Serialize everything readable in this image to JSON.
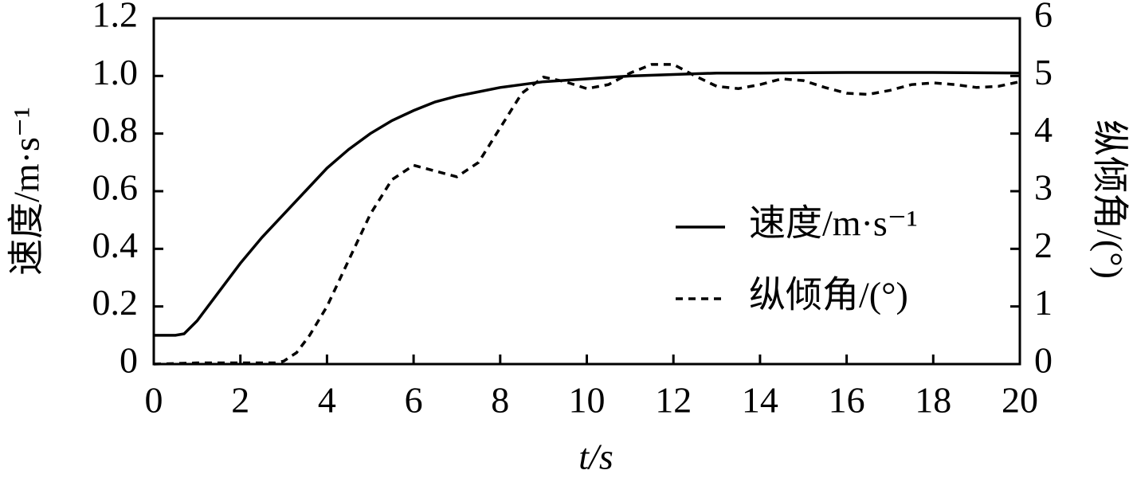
{
  "chart_data": {
    "type": "line",
    "x_label": "t/s",
    "y_label": "速度/m·s⁻¹",
    "y2_label": "纵倾角/(°)",
    "xlim": [
      0,
      20
    ],
    "xticks": [
      0,
      2,
      4,
      6,
      8,
      10,
      12,
      14,
      16,
      18,
      20
    ],
    "ylim": [
      0,
      1.2
    ],
    "yticks": [
      0,
      0.2,
      0.4,
      0.6,
      0.8,
      {
        "value": 1,
        "label": "1.0"
      },
      1.2
    ],
    "y2lim": [
      0,
      6
    ],
    "y2ticks": [
      0,
      1,
      2,
      3,
      4,
      5,
      6
    ],
    "legend": "right",
    "series": [
      {
        "name": "速度/m·s⁻¹",
        "color": "#000000",
        "line_style": "solid",
        "x": [
          0,
          0.5,
          0.7,
          1,
          1.5,
          2,
          2.5,
          3,
          3.5,
          4,
          4.5,
          5,
          5.5,
          6,
          6.5,
          7,
          7.5,
          8,
          8.5,
          9,
          10,
          11,
          12,
          13,
          14,
          16,
          18,
          20
        ],
        "values": [
          0.1,
          0.1,
          0.105,
          0.15,
          0.25,
          0.35,
          0.44,
          0.52,
          0.6,
          0.68,
          0.745,
          0.8,
          0.845,
          0.88,
          0.91,
          0.93,
          0.945,
          0.96,
          0.97,
          0.98,
          0.99,
          1.0,
          1.005,
          1.01,
          1.01,
          1.012,
          1.012,
          1.01
        ]
      },
      {
        "name": "纵倾角/(°)",
        "color": "#000000",
        "line_style": "dashed",
        "axis": "y2",
        "x": [
          0,
          1,
          2,
          2.8,
          3,
          3.3,
          3.6,
          4,
          4.5,
          5,
          5.5,
          6,
          6.5,
          7,
          7.5,
          8,
          8.5,
          9,
          9.5,
          10,
          10.5,
          11,
          11.5,
          12,
          12.5,
          13,
          13.5,
          14,
          14.5,
          15,
          15.5,
          16,
          16.5,
          17,
          17.5,
          18,
          18.5,
          19,
          19.5,
          20
        ],
        "values": [
          0,
          0.02,
          0.02,
          0.02,
          0.05,
          0.2,
          0.5,
          1.0,
          1.8,
          2.6,
          3.2,
          3.45,
          3.35,
          3.25,
          3.5,
          4.1,
          4.7,
          4.98,
          4.9,
          4.78,
          4.85,
          5.05,
          5.2,
          5.2,
          5.0,
          4.82,
          4.78,
          4.85,
          4.95,
          4.92,
          4.8,
          4.7,
          4.68,
          4.75,
          4.85,
          4.88,
          4.85,
          4.8,
          4.82,
          4.9
        ]
      }
    ]
  }
}
